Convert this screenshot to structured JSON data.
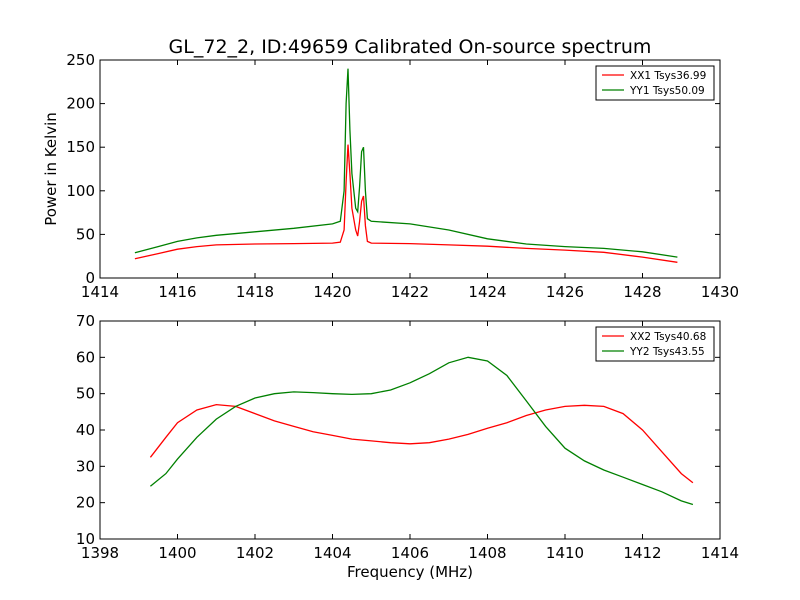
{
  "chart_data": [
    {
      "type": "line",
      "title": "GL_72_2, ID:49659 Calibrated On-source spectrum",
      "xlabel": "",
      "ylabel": "Power in Kelvin",
      "xlim": [
        1414,
        1430
      ],
      "ylim": [
        0,
        250
      ],
      "xticks": [
        "1414",
        "1416",
        "1418",
        "1420",
        "1422",
        "1424",
        "1426",
        "1428",
        "1430"
      ],
      "yticks": [
        "0",
        "50",
        "100",
        "150",
        "200",
        "250"
      ],
      "legend_position": "top-right",
      "series": [
        {
          "name": "XX1 Tsys36.99",
          "color": "#ff0000",
          "x": [
            1414.9,
            1415.5,
            1416.0,
            1416.5,
            1417.0,
            1418.0,
            1419.0,
            1420.0,
            1420.2,
            1420.3,
            1420.35,
            1420.4,
            1420.45,
            1420.5,
            1420.6,
            1420.65,
            1420.7,
            1420.75,
            1420.8,
            1420.85,
            1420.9,
            1421.0,
            1422.0,
            1423.0,
            1424.0,
            1425.0,
            1426.0,
            1427.0,
            1428.0,
            1428.9
          ],
          "y": [
            22,
            28,
            33,
            36,
            38,
            39,
            39.5,
            40,
            41,
            55,
            110,
            153,
            120,
            80,
            55,
            48,
            65,
            88,
            94,
            60,
            42,
            40,
            39.5,
            38,
            36.5,
            34,
            32,
            29.5,
            24,
            18
          ]
        },
        {
          "name": "YY1 Tsys50.09",
          "color": "#008000",
          "x": [
            1414.9,
            1415.5,
            1416.0,
            1416.5,
            1417.0,
            1418.0,
            1419.0,
            1420.0,
            1420.2,
            1420.3,
            1420.35,
            1420.4,
            1420.45,
            1420.5,
            1420.6,
            1420.65,
            1420.7,
            1420.75,
            1420.8,
            1420.85,
            1420.9,
            1421.0,
            1422.0,
            1423.0,
            1424.0,
            1425.0,
            1426.0,
            1427.0,
            1428.0,
            1428.9
          ],
          "y": [
            29,
            36,
            42,
            46,
            49,
            53,
            57,
            62,
            65,
            100,
            200,
            240,
            170,
            120,
            80,
            76,
            105,
            145,
            150,
            100,
            68,
            65,
            62,
            55,
            45,
            39,
            36,
            34,
            30,
            24
          ]
        }
      ]
    },
    {
      "type": "line",
      "title": "",
      "xlabel": "Frequency (MHz)",
      "ylabel": "",
      "xlim": [
        1398,
        1414
      ],
      "ylim": [
        10,
        70
      ],
      "xticks": [
        "1398",
        "1400",
        "1402",
        "1404",
        "1406",
        "1408",
        "1410",
        "1412",
        "1414"
      ],
      "yticks": [
        "10",
        "20",
        "30",
        "40",
        "50",
        "60",
        "70"
      ],
      "legend_position": "top-right",
      "series": [
        {
          "name": "XX2 Tsys40.68",
          "color": "#ff0000",
          "x": [
            1399.3,
            1399.7,
            1400.0,
            1400.5,
            1401.0,
            1401.5,
            1402.0,
            1402.5,
            1403.0,
            1403.5,
            1404.0,
            1404.5,
            1405.0,
            1405.5,
            1406.0,
            1406.5,
            1407.0,
            1407.5,
            1408.0,
            1408.5,
            1409.0,
            1409.5,
            1410.0,
            1410.5,
            1411.0,
            1411.5,
            1412.0,
            1412.5,
            1413.0,
            1413.3
          ],
          "y": [
            32.5,
            38,
            42,
            45.5,
            47,
            46.5,
            44.5,
            42.5,
            41,
            39.5,
            38.5,
            37.5,
            37,
            36.5,
            36.2,
            36.5,
            37.5,
            38.8,
            40.5,
            42,
            44,
            45.5,
            46.5,
            46.8,
            46.5,
            44.5,
            40,
            34,
            28,
            25.5
          ]
        },
        {
          "name": "YY2 Tsys43.55",
          "color": "#008000",
          "x": [
            1399.3,
            1399.7,
            1400.0,
            1400.5,
            1401.0,
            1401.5,
            1402.0,
            1402.5,
            1403.0,
            1403.5,
            1404.0,
            1404.5,
            1405.0,
            1405.5,
            1406.0,
            1406.5,
            1407.0,
            1407.5,
            1408.0,
            1408.5,
            1409.0,
            1409.5,
            1410.0,
            1410.5,
            1411.0,
            1411.5,
            1412.0,
            1412.5,
            1413.0,
            1413.3
          ],
          "y": [
            24.5,
            28,
            32,
            38,
            43,
            46.5,
            48.8,
            50,
            50.5,
            50.3,
            50,
            49.8,
            50,
            51,
            53,
            55.5,
            58.5,
            60,
            59,
            55,
            48,
            41,
            35,
            31.5,
            29,
            27,
            25,
            23,
            20.5,
            19.5
          ]
        }
      ]
    }
  ]
}
